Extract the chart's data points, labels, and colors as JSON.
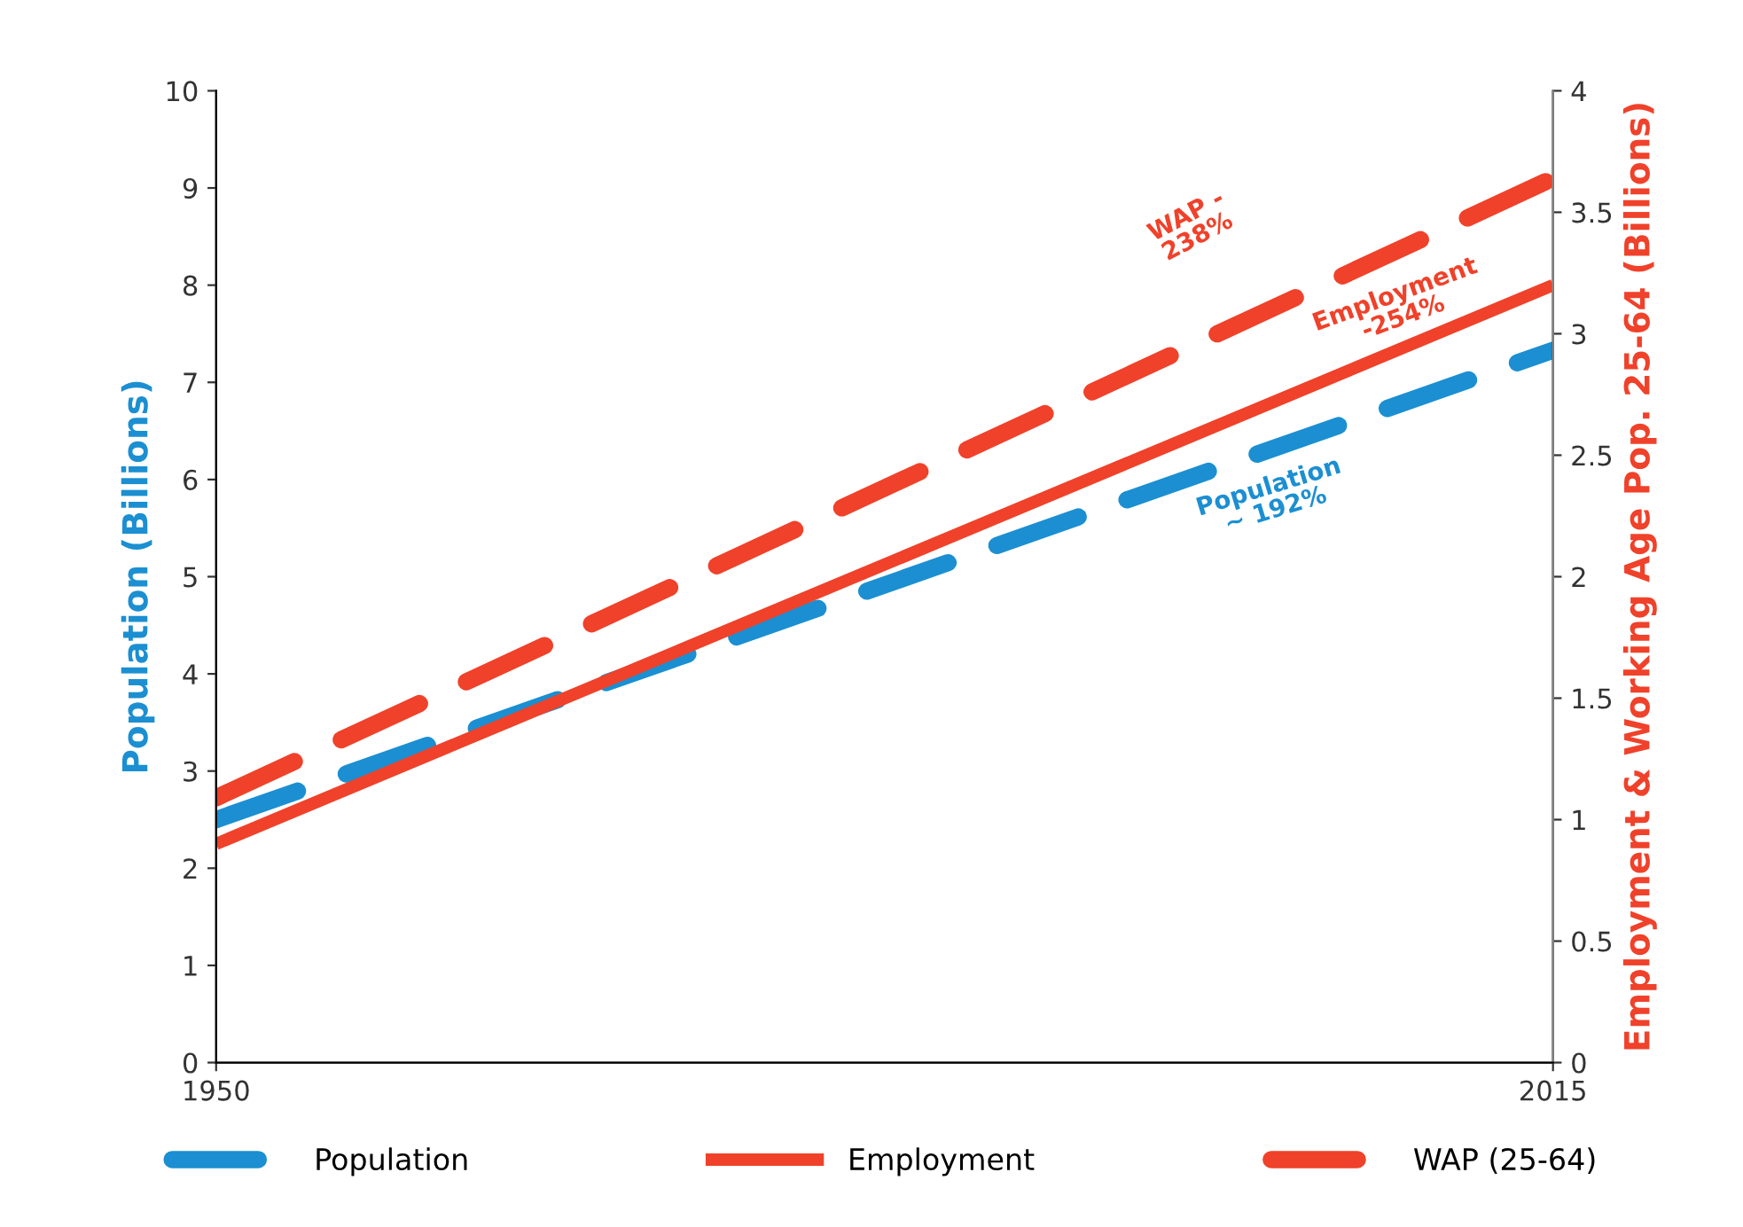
{
  "chart_data": {
    "type": "line",
    "ylabel": "Population (Billions)",
    "y2label": "Employment & Working Age Pop. 25-64 (Billions)",
    "x": [
      1950,
      2015
    ],
    "xlim": [
      1950,
      2015
    ],
    "xticks": [
      1950,
      2015
    ],
    "ylim": [
      0,
      10
    ],
    "yticks": [
      0,
      1,
      2,
      3,
      4,
      5,
      6,
      7,
      8,
      9,
      10
    ],
    "y2lim": [
      0,
      4
    ],
    "y2ticks": [
      0,
      0.5,
      1,
      1.5,
      2,
      2.5,
      3,
      3.5,
      4
    ],
    "series": [
      {
        "name": "Population",
        "color": "#1b8fd1",
        "values": [
          2.5,
          7.33
        ],
        "line_style": "dashed"
      },
      {
        "name": "Employment",
        "color": "#f0412a",
        "values": [
          0.9,
          3.2
        ],
        "axis": "y2",
        "line_style": "solid"
      },
      {
        "name": "WAP (25-64)",
        "color": "#f0412a",
        "values": [
          1.09,
          3.64
        ],
        "axis": "y2",
        "line_style": "dashed"
      }
    ],
    "annotations": [
      "WAP -\n238%",
      "Employment\n-254%",
      "Population\n~ 192%"
    ],
    "legend": "bottom",
    "grid": false
  }
}
